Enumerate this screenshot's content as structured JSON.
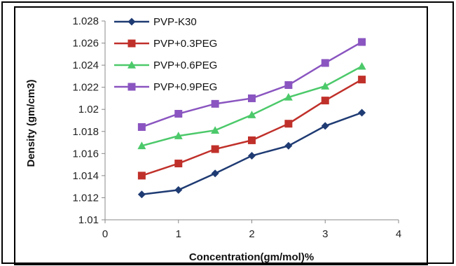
{
  "chart_data": {
    "type": "line",
    "xlabel": "Concentration(gm/mol)%",
    "ylabel": "Density (gm/cm3)",
    "xlim": [
      0,
      4
    ],
    "ylim": [
      1.01,
      1.028
    ],
    "x_ticks": [
      "0",
      "1",
      "2",
      "3",
      "4"
    ],
    "y_ticks": [
      "1.01",
      "1.012",
      "1.014",
      "1.016",
      "1.018",
      "1.02",
      "1.022",
      "1.024",
      "1.026",
      "1.028"
    ],
    "grid": false,
    "legend_position": "top-left",
    "x": [
      0.5,
      1,
      1.5,
      2,
      2.5,
      3,
      3.5
    ],
    "series": [
      {
        "name": "PVP-K30",
        "color": "#1f3b73",
        "marker": "diamond",
        "values": [
          1.0123,
          1.0127,
          1.0142,
          1.0158,
          1.0167,
          1.0185,
          1.0197
        ]
      },
      {
        "name": "PVP+0.3PEG",
        "color": "#c0302a",
        "marker": "square",
        "values": [
          1.014,
          1.0151,
          1.0164,
          1.0172,
          1.0187,
          1.0208,
          1.0227
        ]
      },
      {
        "name": "PVP+0.6PEG",
        "color": "#4cc96a",
        "marker": "triangle",
        "values": [
          1.0167,
          1.0176,
          1.0181,
          1.0195,
          1.0211,
          1.0221,
          1.0239
        ]
      },
      {
        "name": "PVP+0.9PEG",
        "color": "#8a55c0",
        "marker": "square",
        "values": [
          1.0184,
          1.0196,
          1.0205,
          1.021,
          1.0222,
          1.0242,
          1.0261
        ]
      }
    ]
  }
}
